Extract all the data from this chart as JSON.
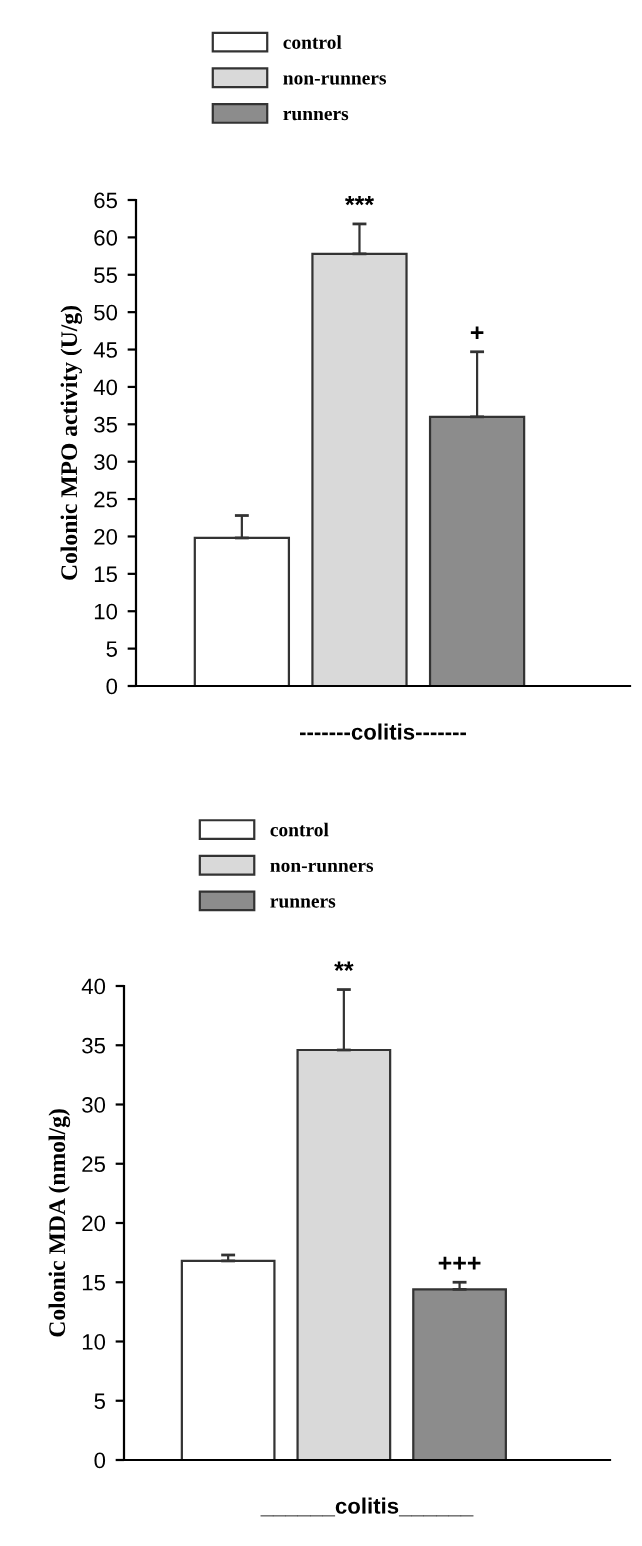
{
  "chart_data": [
    {
      "type": "bar",
      "ylabel": "Colonic MPO activity (U/g)",
      "xlabel": "-------colitis-------",
      "categories": [
        null,
        null,
        null
      ],
      "ylim": [
        0,
        65
      ],
      "yticks": [
        0,
        5,
        10,
        15,
        20,
        25,
        30,
        35,
        40,
        45,
        50,
        55,
        60,
        65
      ],
      "legend": "top",
      "grid": false,
      "series": [
        {
          "name": "control",
          "color": "#ffffff",
          "values": [
            19.8,
            null,
            null
          ],
          "errors": [
            3,
            null,
            null
          ]
        },
        {
          "name": "non-runners",
          "color": "#d9d9d9",
          "values": [
            null,
            57.8,
            null
          ],
          "errors": [
            null,
            4,
            null
          ],
          "value_labels": [
            null,
            "***",
            null
          ]
        },
        {
          "name": "runners",
          "color": "#8c8c8c",
          "values": [
            null,
            null,
            36
          ],
          "errors": [
            null,
            null,
            8.7
          ],
          "value_labels": [
            null,
            null,
            "+"
          ]
        }
      ]
    },
    {
      "type": "bar",
      "ylabel": "Colonic MDA (nmol/g)",
      "xlabel": "______colitis______",
      "categories": [
        null,
        null,
        null
      ],
      "ylim": [
        0,
        40
      ],
      "yticks": [
        0,
        5,
        10,
        15,
        20,
        25,
        30,
        35,
        40
      ],
      "legend": "top",
      "grid": false,
      "series": [
        {
          "name": "control",
          "color": "#ffffff",
          "values": [
            16.8,
            null,
            null
          ],
          "errors": [
            0.5,
            null,
            null
          ]
        },
        {
          "name": "non-runners",
          "color": "#d9d9d9",
          "values": [
            null,
            34.6,
            null
          ],
          "errors": [
            null,
            5.1,
            null
          ],
          "value_labels": [
            null,
            "**",
            null
          ]
        },
        {
          "name": "runners",
          "color": "#8c8c8c",
          "values": [
            null,
            null,
            14.4
          ],
          "errors": [
            null,
            null,
            0.6
          ],
          "value_labels": [
            null,
            null,
            "+++"
          ]
        }
      ]
    }
  ]
}
